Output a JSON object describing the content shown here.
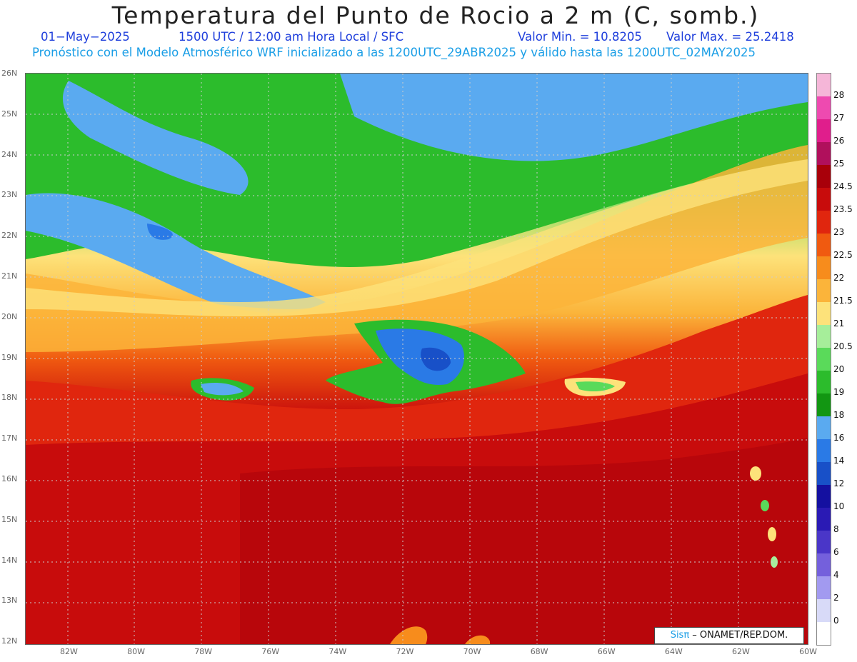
{
  "title": "Temperatura del Punto de Rocio a 2 m (C, somb.)",
  "subtitle": {
    "date": "01−May−2025",
    "time": "1500 UTC / 12:00 am Hora Local / SFC",
    "min_label": "Valor Min. = 10.8205",
    "max_label": "Valor Max. = 25.2418",
    "model_info": "Pronóstico con el Modelo Atmosférico WRF inicializado a las 1200UTC_29ABR2025 y válido hasta las  1200UTC_02MAY2025"
  },
  "map": {
    "lat_labels": [
      "26N",
      "25N",
      "24N",
      "23N",
      "22N",
      "21N",
      "20N",
      "19N",
      "18N",
      "17N",
      "16N",
      "15N",
      "14N",
      "13N",
      "12N"
    ],
    "lon_labels": [
      "82W",
      "80W",
      "78W",
      "76W",
      "74W",
      "72W",
      "70W",
      "68W",
      "66W",
      "64W",
      "62W",
      "60W"
    ],
    "credit_brand": "Sisπ",
    "credit_text": " – ONAMET/REP.DOM."
  },
  "colorbar": {
    "labels": [
      "28",
      "27",
      "26",
      "25",
      "24.5",
      "23.5",
      "23",
      "22.5",
      "22",
      "21.5",
      "21",
      "20.5",
      "20",
      "19",
      "18",
      "16",
      "14",
      "12",
      "10",
      "8",
      "6",
      "4",
      "2",
      "0"
    ],
    "colors": [
      "#f5b6d8",
      "#ee4ab0",
      "#e01e8c",
      "#b0105c",
      "#a8000a",
      "#c80c0c",
      "#e0260e",
      "#f05a10",
      "#f78c1c",
      "#fbb43a",
      "#fde27a",
      "#a6ee9a",
      "#5ada5a",
      "#2cbc2c",
      "#129612",
      "#5aaaf0",
      "#2a7ae6",
      "#1850c8",
      "#1410a0",
      "#2a1ab4",
      "#4a36c8",
      "#7460dc",
      "#a29af0",
      "#d8daf8",
      "#ffffff"
    ],
    "accent_colors": {
      "cold": "#3a7ee0",
      "mid": "#3cc03c",
      "warm": "#f8a020",
      "hot": "#c80c0c"
    }
  }
}
